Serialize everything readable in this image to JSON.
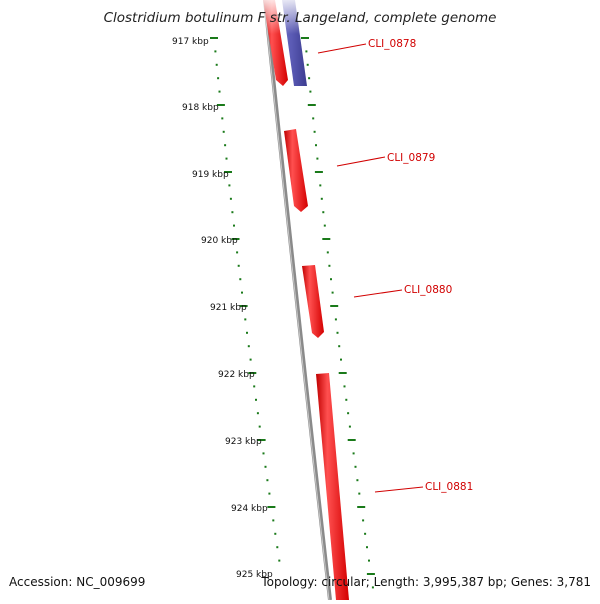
{
  "title": "Clostridium botulinum F str. Langeland, complete genome",
  "accession": "Accession: NC_009699",
  "summary": "Topology: circular; Length: 3,995,387 bp; Genes: 3,781",
  "ticks": [
    "917 kbp",
    "918 kbp",
    "919 kbp",
    "920 kbp",
    "921 kbp",
    "922 kbp",
    "923 kbp",
    "924 kbp",
    "925 kbp"
  ],
  "genes": [
    {
      "label": "CLI_0878",
      "color": "#e01010"
    },
    {
      "label": "CLI_0879",
      "color": "#e01010"
    },
    {
      "label": "CLI_0880",
      "color": "#e01010"
    },
    {
      "label": "CLI_0881",
      "color": "#e01010"
    }
  ],
  "colors": {
    "backbone": "#8a8a8a",
    "forward_gene": "#e01010",
    "reverse_gene": "#4a4aa0",
    "tick": "#1a7a1a",
    "label": "#d10000"
  }
}
